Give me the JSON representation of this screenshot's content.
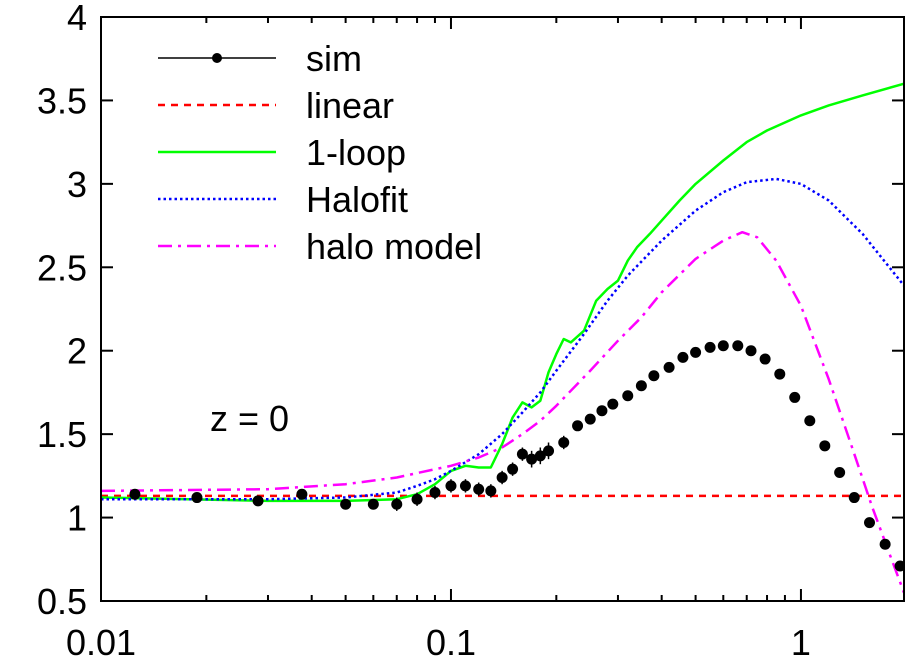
{
  "chart_data": {
    "type": "line",
    "title": "",
    "xlabel": "",
    "ylabel": "",
    "x_scale": "log",
    "xlim": [
      0.01,
      1.97
    ],
    "ylim": [
      0.5,
      4
    ],
    "grid": false,
    "legend_position": "top-left",
    "annotation": "z = 0",
    "xticks": [
      {
        "value": 0.01,
        "label": "0.01"
      },
      {
        "value": 0.1,
        "label": "0.1"
      },
      {
        "value": 1,
        "label": "1"
      }
    ],
    "yticks": [
      {
        "value": 0.5,
        "label": "0.5"
      },
      {
        "value": 1,
        "label": "1"
      },
      {
        "value": 1.5,
        "label": "1.5"
      },
      {
        "value": 2,
        "label": "2"
      },
      {
        "value": 2.5,
        "label": "2.5"
      },
      {
        "value": 3,
        "label": "3"
      },
      {
        "value": 3.5,
        "label": "3.5"
      },
      {
        "value": 4,
        "label": "4"
      }
    ],
    "series": [
      {
        "name": "sim",
        "kind": "points",
        "color": "#000000",
        "x": [
          0.0125,
          0.0188,
          0.0281,
          0.0375,
          0.05,
          0.06,
          0.07,
          0.08,
          0.09,
          0.1,
          0.11,
          0.12,
          0.13,
          0.14,
          0.15,
          0.16,
          0.17,
          0.18,
          0.19,
          0.21,
          0.23,
          0.25,
          0.27,
          0.29,
          0.32,
          0.35,
          0.38,
          0.42,
          0.46,
          0.5,
          0.55,
          0.6,
          0.66,
          0.72,
          0.79,
          0.87,
          0.96,
          1.06,
          1.17,
          1.29,
          1.42,
          1.57,
          1.74,
          1.92
        ],
        "y": [
          1.14,
          1.12,
          1.1,
          1.14,
          1.08,
          1.08,
          1.08,
          1.11,
          1.15,
          1.19,
          1.19,
          1.17,
          1.16,
          1.24,
          1.29,
          1.38,
          1.35,
          1.37,
          1.4,
          1.45,
          1.55,
          1.59,
          1.64,
          1.68,
          1.73,
          1.79,
          1.85,
          1.9,
          1.96,
          1.99,
          2.02,
          2.03,
          2.03,
          2.0,
          1.95,
          1.86,
          1.72,
          1.58,
          1.43,
          1.27,
          1.12,
          0.97,
          0.84,
          0.71
        ],
        "err": [
          0.0,
          0.0,
          0.0,
          0.0,
          0.02,
          0.03,
          0.04,
          0.04,
          0.04,
          0.04,
          0.04,
          0.04,
          0.04,
          0.04,
          0.04,
          0.04,
          0.05,
          0.05,
          0.05,
          0.04,
          0.03,
          0.03,
          0.03,
          0.03,
          0.03,
          0.02,
          0.02,
          0.02,
          0.02,
          0.0,
          0.0,
          0.0,
          0.0,
          0.0,
          0.0,
          0.0,
          0.0,
          0.0,
          0.0,
          0.0,
          0.0,
          0.0,
          0.0,
          0.0
        ]
      },
      {
        "name": "linear",
        "kind": "line",
        "style": "dashed",
        "color": "#ff0000",
        "x": [
          0.01,
          1.97
        ],
        "y": [
          1.13,
          1.13
        ]
      },
      {
        "name": "1-loop",
        "kind": "line",
        "style": "solid",
        "color": "#00ff00",
        "x": [
          0.01,
          0.03,
          0.05,
          0.07,
          0.08,
          0.09,
          0.1,
          0.11,
          0.12,
          0.13,
          0.14,
          0.15,
          0.16,
          0.17,
          0.18,
          0.19,
          0.2,
          0.21,
          0.22,
          0.24,
          0.26,
          0.28,
          0.3,
          0.32,
          0.34,
          0.37,
          0.4,
          0.45,
          0.5,
          0.6,
          0.7,
          0.8,
          1.0,
          1.2,
          1.5,
          1.97
        ],
        "y": [
          1.12,
          1.1,
          1.1,
          1.11,
          1.14,
          1.2,
          1.28,
          1.31,
          1.3,
          1.3,
          1.44,
          1.6,
          1.69,
          1.66,
          1.7,
          1.87,
          1.98,
          2.07,
          2.05,
          2.12,
          2.3,
          2.37,
          2.42,
          2.54,
          2.62,
          2.7,
          2.78,
          2.9,
          3.0,
          3.14,
          3.25,
          3.32,
          3.41,
          3.47,
          3.53,
          3.6
        ]
      },
      {
        "name": "Halofit",
        "kind": "line",
        "style": "dotted",
        "color": "#0000ff",
        "x": [
          0.01,
          0.03,
          0.05,
          0.07,
          0.08,
          0.09,
          0.1,
          0.12,
          0.14,
          0.16,
          0.18,
          0.2,
          0.24,
          0.28,
          0.32,
          0.4,
          0.5,
          0.6,
          0.7,
          0.85,
          1.0,
          1.2,
          1.5,
          1.97
        ],
        "y": [
          1.11,
          1.11,
          1.12,
          1.15,
          1.19,
          1.23,
          1.28,
          1.38,
          1.5,
          1.63,
          1.75,
          1.88,
          2.1,
          2.3,
          2.45,
          2.66,
          2.84,
          2.95,
          3.01,
          3.03,
          3.0,
          2.9,
          2.7,
          2.39
        ]
      },
      {
        "name": "halo model",
        "kind": "line",
        "style": "dashdot",
        "color": "#ff00ff",
        "x": [
          0.01,
          0.03,
          0.05,
          0.07,
          0.09,
          0.1,
          0.12,
          0.14,
          0.16,
          0.18,
          0.2,
          0.25,
          0.3,
          0.35,
          0.4,
          0.5,
          0.6,
          0.68,
          0.75,
          0.85,
          1.0,
          1.2,
          1.4,
          1.6,
          1.8,
          1.97
        ],
        "y": [
          1.16,
          1.17,
          1.2,
          1.24,
          1.29,
          1.31,
          1.36,
          1.42,
          1.5,
          1.58,
          1.67,
          1.88,
          2.06,
          2.2,
          2.35,
          2.55,
          2.66,
          2.71,
          2.68,
          2.54,
          2.27,
          1.83,
          1.42,
          1.06,
          0.77,
          0.55
        ]
      }
    ]
  }
}
